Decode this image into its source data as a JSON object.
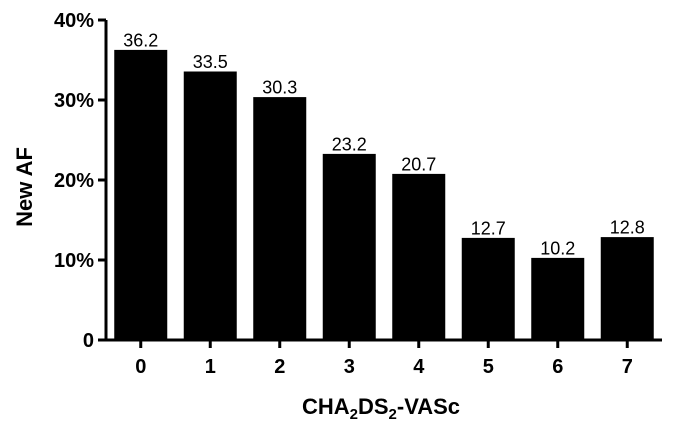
{
  "chart_data": {
    "type": "bar",
    "categories": [
      "0",
      "1",
      "2",
      "3",
      "4",
      "5",
      "6",
      "7"
    ],
    "values": [
      36.2,
      33.5,
      30.3,
      23.2,
      20.7,
      12.7,
      10.2,
      12.8
    ],
    "value_labels": [
      "36.2",
      "33.5",
      "30.3",
      "23.2",
      "20.7",
      "12.7",
      "10.2",
      "12.8"
    ],
    "ylabel": "New AF",
    "xlabel": {
      "parts": [
        "CHA",
        "2",
        "DS",
        "2",
        "-VASc"
      ]
    },
    "ylim": [
      0,
      40
    ],
    "yticks": [
      0,
      10,
      20,
      30,
      40
    ],
    "ytick_labels": [
      "0",
      "10%",
      "20%",
      "30%",
      "40%"
    ],
    "bar_color": "#000000",
    "grid": false,
    "legend": "none"
  }
}
